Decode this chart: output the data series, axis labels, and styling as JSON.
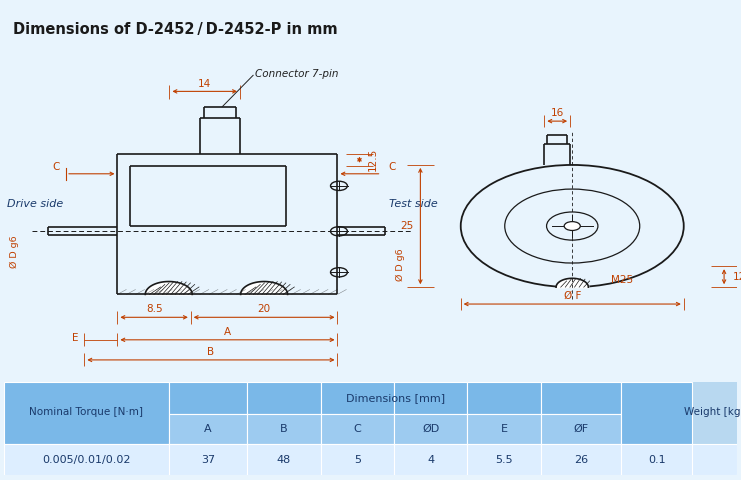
{
  "title": "Dimensions of D-2452 / D-2452-P in mm",
  "title_bg": "#cde0f0",
  "bg_color": "#e8f4fd",
  "table": {
    "nominal_torque_label": "Nominal Torque [N·m]",
    "dimensions_label": "Dimensions [mm]",
    "weight_label": "Weight [kg]",
    "col_headers": [
      "A",
      "B",
      "C",
      "ØD",
      "E",
      "ØF"
    ],
    "data_row": [
      "0.005/0.01/0.02",
      "37",
      "48",
      "5",
      "4",
      "5.5",
      "26",
      "0.1"
    ]
  },
  "line_color": "#1a1a1a",
  "dim_color": "#c04000",
  "text_color": "#1a3a6b"
}
